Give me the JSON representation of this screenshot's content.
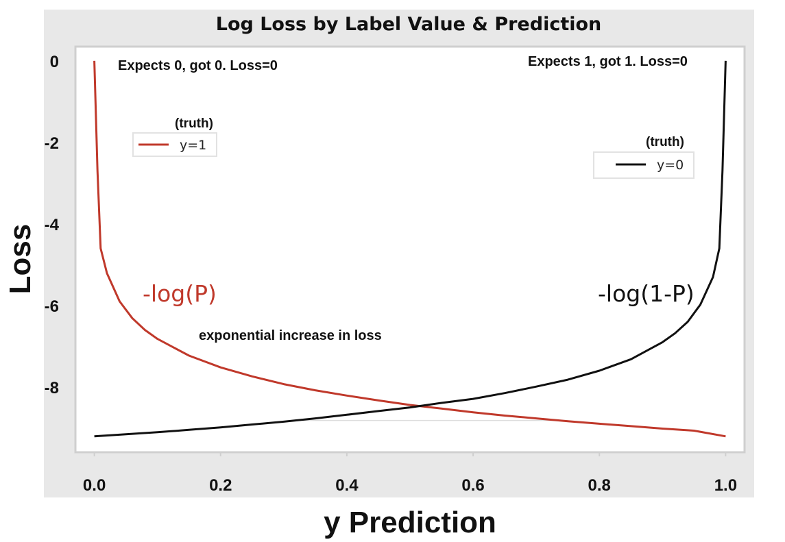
{
  "chart_data": {
    "type": "line",
    "title": "Log Loss by Label Value & Prediction",
    "xlabel": "y Prediction",
    "ylabel": "Loss",
    "xlim": [
      -0.03,
      1.03
    ],
    "ylim": [
      -9.6,
      0.35
    ],
    "x_ticks": [
      "0.0",
      "0.2",
      "0.4",
      "0.6",
      "0.8",
      "1.0"
    ],
    "x_tick_values": [
      0.0,
      0.2,
      0.4,
      0.6,
      0.8,
      1.0
    ],
    "y_ticks": [
      "0",
      "-2",
      "-4",
      "-6",
      "-8"
    ],
    "y_tick_values": [
      0,
      -2,
      -4,
      -6,
      -8
    ],
    "grid": false,
    "series": [
      {
        "name": "y=1",
        "legend_title": "(truth)",
        "color": "#c0392b",
        "x": [
          0.0,
          0.005,
          0.01,
          0.02,
          0.04,
          0.06,
          0.08,
          0.1,
          0.15,
          0.2,
          0.25,
          0.3,
          0.35,
          0.4,
          0.45,
          0.5,
          0.55,
          0.6,
          0.65,
          0.7,
          0.75,
          0.8,
          0.85,
          0.9,
          0.95,
          1.0
        ],
        "y": [
          0.0,
          -2.7,
          -4.6,
          -5.21,
          -5.9,
          -6.31,
          -6.6,
          -6.82,
          -7.23,
          -7.52,
          -7.74,
          -7.93,
          -8.08,
          -8.21,
          -8.33,
          -8.44,
          -8.53,
          -8.62,
          -8.7,
          -8.77,
          -8.84,
          -8.9,
          -8.96,
          -9.02,
          -9.07,
          -9.21
        ]
      },
      {
        "name": "y=0",
        "legend_title": "(truth)",
        "color": "#111111",
        "x": [
          0.0,
          0.05,
          0.1,
          0.15,
          0.2,
          0.25,
          0.3,
          0.35,
          0.4,
          0.45,
          0.5,
          0.55,
          0.6,
          0.65,
          0.7,
          0.75,
          0.8,
          0.85,
          0.9,
          0.92,
          0.94,
          0.96,
          0.98,
          0.99,
          0.995,
          1.0
        ],
        "y": [
          -9.21,
          -9.16,
          -9.11,
          -9.05,
          -8.99,
          -8.92,
          -8.85,
          -8.77,
          -8.68,
          -8.59,
          -8.5,
          -8.39,
          -8.29,
          -8.15,
          -7.99,
          -7.82,
          -7.6,
          -7.32,
          -6.9,
          -6.68,
          -6.4,
          -5.98,
          -5.3,
          -4.6,
          -2.7,
          0.0
        ]
      }
    ],
    "annotations": [
      {
        "text": "Expects 0, got 0. Loss=0"
      },
      {
        "text": "Expects 1, got 1. Loss=0"
      },
      {
        "text": "exponential increase in loss"
      },
      {
        "text": "-log(P)",
        "color": "#c0392b"
      },
      {
        "text": "-log(1-P)",
        "color": "#111111"
      }
    ]
  }
}
